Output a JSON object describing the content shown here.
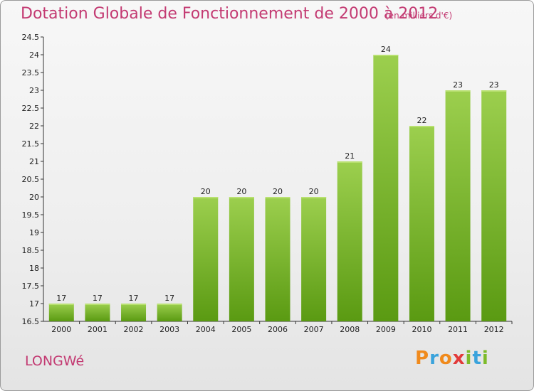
{
  "header": {
    "title": "Dotation Globale de Fonctionnement de 2000 à 2012",
    "unit": "(en milliers d'€)"
  },
  "footer": {
    "commune": "LONGWé",
    "logo_text": "Proxiti"
  },
  "colors": {
    "accent": "#c33a72",
    "bar_top": "#9ccf4e",
    "bar_bottom": "#5a9a12"
  },
  "chart_data": {
    "type": "bar",
    "title": "Dotation Globale de Fonctionnement de 2000 à 2012",
    "xlabel": "",
    "ylabel": "",
    "categories": [
      "2000",
      "2001",
      "2002",
      "2003",
      "2004",
      "2005",
      "2006",
      "2007",
      "2008",
      "2009",
      "2010",
      "2011",
      "2012"
    ],
    "values": [
      17,
      17,
      17,
      17,
      20,
      20,
      20,
      20,
      21,
      24,
      22,
      23,
      23
    ],
    "data_labels": [
      "17",
      "17",
      "17",
      "17",
      "20",
      "20",
      "20",
      "20",
      "21",
      "24",
      "22",
      "23",
      "23"
    ],
    "ylim": [
      16.5,
      24.5
    ],
    "yticks": [
      "16.5",
      "17",
      "17.5",
      "18",
      "18.5",
      "19",
      "19.5",
      "20",
      "20.5",
      "21",
      "21.5",
      "22",
      "22.5",
      "23",
      "23.5",
      "24",
      "24.5"
    ],
    "grid": false,
    "legend": "none"
  }
}
